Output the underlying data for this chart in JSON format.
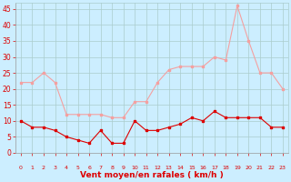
{
  "hours": [
    0,
    1,
    2,
    3,
    4,
    5,
    6,
    7,
    8,
    9,
    10,
    11,
    12,
    13,
    14,
    15,
    16,
    17,
    18,
    19,
    20,
    21,
    22,
    23
  ],
  "vent_moyen": [
    10,
    8,
    8,
    7,
    5,
    4,
    3,
    7,
    3,
    3,
    10,
    7,
    7,
    8,
    9,
    11,
    10,
    13,
    11,
    11,
    11,
    11,
    8,
    8
  ],
  "rafales": [
    22,
    22,
    25,
    22,
    12,
    12,
    12,
    12,
    11,
    11,
    16,
    16,
    22,
    26,
    27,
    27,
    27,
    30,
    29,
    46,
    35,
    25,
    25,
    20
  ],
  "color_moyen": "#dd0000",
  "color_rafales": "#f4a0a0",
  "bg_color": "#cceeff",
  "grid_color": "#aacccc",
  "xlabel": "Vent moyen/en rafales ( km/h )",
  "tick_color": "#dd0000",
  "ylabel_ticks": [
    0,
    5,
    10,
    15,
    20,
    25,
    30,
    35,
    40,
    45
  ],
  "ylim": [
    0,
    47
  ],
  "xlim": [
    -0.5,
    23.5
  ]
}
